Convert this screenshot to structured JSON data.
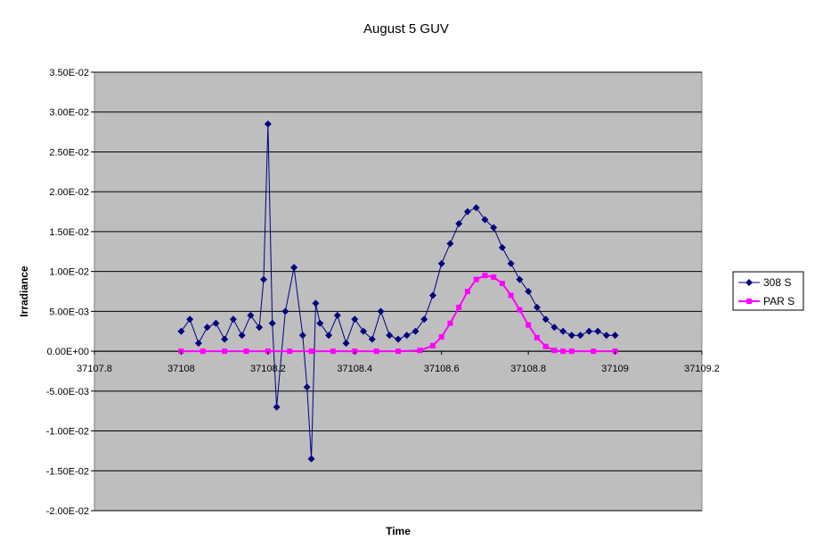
{
  "chart_data": {
    "type": "line",
    "title": "August 5 GUV",
    "xlabel": "Time",
    "ylabel": "Irradiance",
    "xlim": [
      37107.8,
      37109.2
    ],
    "ylim": [
      -0.02,
      0.035
    ],
    "x_ticks": [
      {
        "value": 37107.8,
        "label": "37107.8"
      },
      {
        "value": 37108.0,
        "label": "37108"
      },
      {
        "value": 37108.2,
        "label": "37108.2"
      },
      {
        "value": 37108.4,
        "label": "37108.4"
      },
      {
        "value": 37108.6,
        "label": "37108.6"
      },
      {
        "value": 37108.8,
        "label": "37108.8"
      },
      {
        "value": 37109.0,
        "label": "37109"
      },
      {
        "value": 37109.2,
        "label": "37109.2"
      }
    ],
    "y_ticks": [
      {
        "value": 0.035,
        "label": "3.50E-02"
      },
      {
        "value": 0.03,
        "label": "3.00E-02"
      },
      {
        "value": 0.025,
        "label": "2.50E-02"
      },
      {
        "value": 0.02,
        "label": "2.00E-02"
      },
      {
        "value": 0.015,
        "label": "1.50E-02"
      },
      {
        "value": 0.01,
        "label": "1.00E-02"
      },
      {
        "value": 0.005,
        "label": "5.00E-03"
      },
      {
        "value": 0.0,
        "label": "0.00E+00"
      },
      {
        "value": -0.005,
        "label": "-5.00E-03"
      },
      {
        "value": -0.01,
        "label": "-1.00E-02"
      },
      {
        "value": -0.015,
        "label": "-1.50E-02"
      },
      {
        "value": -0.02,
        "label": "-2.00E-02"
      }
    ],
    "grid": true,
    "legend_position": "right",
    "series": [
      {
        "name": "308 S",
        "color": "#000080",
        "marker": "diamond",
        "x": [
          37108.0,
          37108.02,
          37108.04,
          37108.06,
          37108.08,
          37108.1,
          37108.12,
          37108.14,
          37108.16,
          37108.18,
          37108.19,
          37108.2,
          37108.21,
          37108.22,
          37108.24,
          37108.26,
          37108.28,
          37108.29,
          37108.3,
          37108.31,
          37108.32,
          37108.34,
          37108.36,
          37108.38,
          37108.4,
          37108.42,
          37108.44,
          37108.46,
          37108.48,
          37108.5,
          37108.52,
          37108.54,
          37108.56,
          37108.58,
          37108.6,
          37108.62,
          37108.64,
          37108.66,
          37108.68,
          37108.7,
          37108.72,
          37108.74,
          37108.76,
          37108.78,
          37108.8,
          37108.82,
          37108.84,
          37108.86,
          37108.88,
          37108.9,
          37108.92,
          37108.94,
          37108.96,
          37108.98,
          37109.0
        ],
        "y": [
          0.0025,
          0.004,
          0.001,
          0.003,
          0.0035,
          0.0015,
          0.004,
          0.002,
          0.0045,
          0.003,
          0.009,
          0.0285,
          0.0035,
          -0.007,
          0.005,
          0.0105,
          0.002,
          -0.0045,
          -0.0135,
          0.006,
          0.0035,
          0.002,
          0.0045,
          0.001,
          0.004,
          0.0025,
          0.0015,
          0.005,
          0.002,
          0.0015,
          0.002,
          0.0025,
          0.004,
          0.007,
          0.011,
          0.0135,
          0.016,
          0.0175,
          0.018,
          0.0165,
          0.0155,
          0.013,
          0.011,
          0.009,
          0.0075,
          0.0055,
          0.004,
          0.003,
          0.0025,
          0.002,
          0.002,
          0.0025,
          0.0025,
          0.002,
          0.002
        ]
      },
      {
        "name": "PAR S",
        "color": "#ff00ff",
        "marker": "square",
        "x": [
          37108.0,
          37108.05,
          37108.1,
          37108.15,
          37108.2,
          37108.25,
          37108.3,
          37108.35,
          37108.4,
          37108.45,
          37108.5,
          37108.55,
          37108.58,
          37108.6,
          37108.62,
          37108.64,
          37108.66,
          37108.68,
          37108.7,
          37108.72,
          37108.74,
          37108.76,
          37108.78,
          37108.8,
          37108.82,
          37108.84,
          37108.86,
          37108.88,
          37108.9,
          37108.95,
          37109.0
        ],
        "y": [
          0,
          0,
          0,
          0,
          0,
          0,
          0,
          0,
          0,
          0,
          0,
          0.0001,
          0.0007,
          0.0018,
          0.0035,
          0.0055,
          0.0075,
          0.009,
          0.0095,
          0.0093,
          0.0085,
          0.007,
          0.0052,
          0.0033,
          0.0017,
          0.0006,
          0.0001,
          0,
          0,
          0,
          0
        ]
      }
    ]
  }
}
